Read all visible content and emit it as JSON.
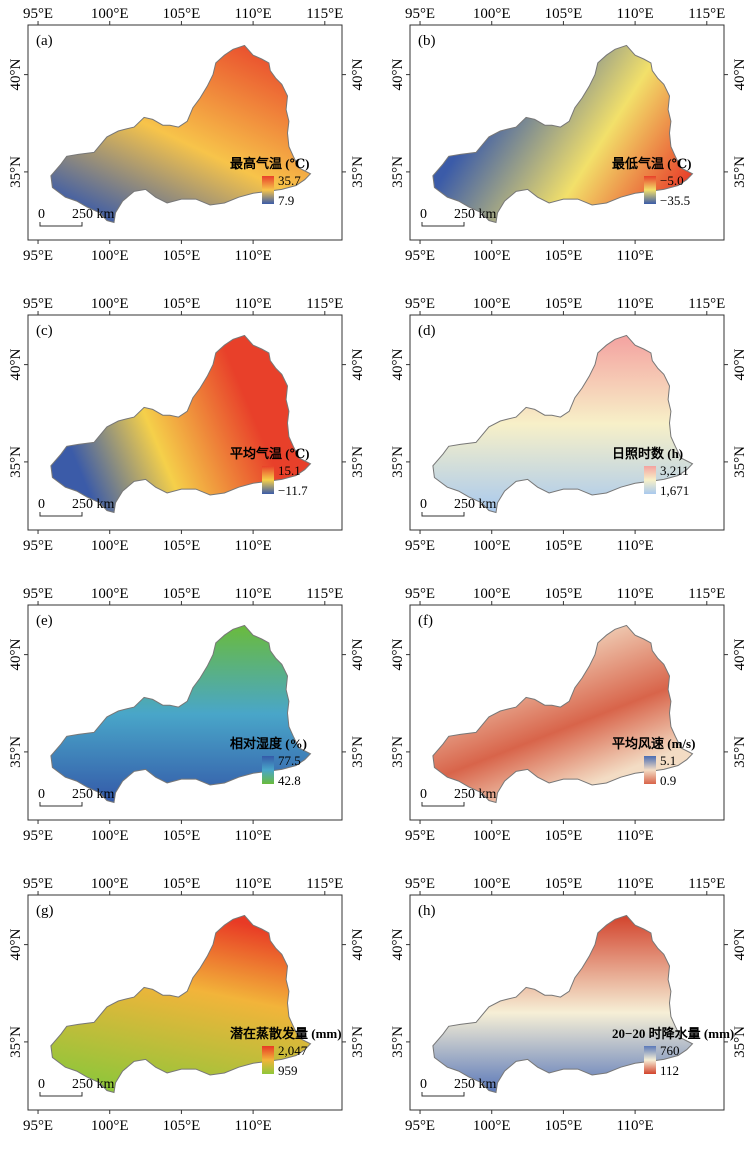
{
  "axes": {
    "lon_ticks": [
      "95°E",
      "100°E",
      "105°E",
      "110°E",
      "115°E"
    ],
    "lat_ticks": [
      "40°N",
      "35°N"
    ]
  },
  "scale_bar": {
    "start": "0",
    "end": "250 km"
  },
  "panels": [
    {
      "label": "(a)",
      "legend_title": "最高气温 (℃)",
      "legend_max": "35.7",
      "legend_min": "7.9",
      "colors": {
        "high": "#e8402a",
        "mid": "#f7c44a",
        "low": "#3b5ba8"
      }
    },
    {
      "label": "(b)",
      "legend_title": "最低气温 (℃)",
      "legend_max": "−5.0",
      "legend_min": "−35.5",
      "colors": {
        "high": "#e8402a",
        "mid": "#f2e06a",
        "low": "#3b5ba8"
      }
    },
    {
      "label": "(c)",
      "legend_title": "平均气温 (℃)",
      "legend_max": "15.1",
      "legend_min": "−11.7",
      "colors": {
        "high": "#e8402a",
        "mid": "#f5d04a",
        "low": "#3b5ba8"
      }
    },
    {
      "label": "(d)",
      "legend_title": "日照时数 (h)",
      "legend_max": "3,211",
      "legend_min": "1,671",
      "colors": {
        "high": "#f4a2a0",
        "mid": "#f7f0c8",
        "low": "#a9c9ee"
      }
    },
    {
      "label": "(e)",
      "legend_title": "相对湿度 (%)",
      "legend_max": "77.5",
      "legend_min": "42.8",
      "colors": {
        "high": "#3459a8",
        "mid": "#49a6c9",
        "low": "#6abb3c"
      }
    },
    {
      "label": "(f)",
      "legend_title": "平均风速 (m/s)",
      "legend_max": "5.1",
      "legend_min": "0.9",
      "colors": {
        "high": "#4a6cb2",
        "mid": "#f3dcc4",
        "low": "#d8644a"
      }
    },
    {
      "label": "(g)",
      "legend_title": "潜在蒸散发量 (mm)",
      "legend_max": "2,047",
      "legend_min": "959",
      "colors": {
        "high": "#e83a25",
        "mid": "#f2b43a",
        "low": "#8fc63a"
      }
    },
    {
      "label": "(h)",
      "legend_title": "20−20 时降水量 (mm)",
      "legend_max": "760",
      "legend_min": "112",
      "colors": {
        "high": "#5a78b9",
        "mid": "#f6efd6",
        "low": "#d2432c"
      }
    }
  ]
}
